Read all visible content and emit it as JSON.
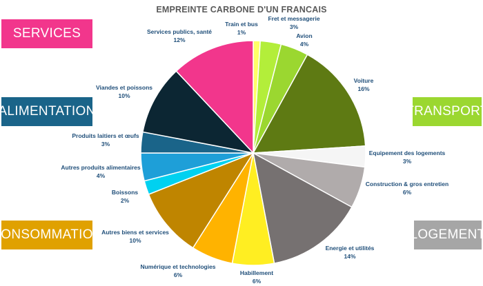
{
  "chart_data": {
    "type": "pie",
    "title": "EMPREINTE CARBONE D'UN FRANCAIS",
    "slices": [
      {
        "label": "Train et bus",
        "value_label": "1%",
        "value": 1,
        "color": "#FFFF66"
      },
      {
        "label": "Fret et messagerie",
        "value_label": "3%",
        "value": 3,
        "color": "#B3EE3A"
      },
      {
        "label": "Avion",
        "value_label": "4%",
        "value": 4,
        "color": "#9BD730"
      },
      {
        "label": "Voiture",
        "value_label": "16%",
        "value": 16,
        "color": "#5E7A13"
      },
      {
        "label": "Equipement des logements",
        "value_label": "3%",
        "value": 3,
        "color": "#F5F5F5"
      },
      {
        "label": "Construction & gros entretien",
        "value_label": "6%",
        "value": 6,
        "color": "#B0ABAB"
      },
      {
        "label": "Energie et utilités",
        "value_label": "14%",
        "value": 14,
        "color": "#767171"
      },
      {
        "label": "Habillement",
        "value_label": "6%",
        "value": 6,
        "color": "#FFEE22"
      },
      {
        "label": "Numérique et technologies",
        "value_label": "6%",
        "value": 6,
        "color": "#FFB300"
      },
      {
        "label": "Autres biens et services",
        "value_label": "10%",
        "value": 10,
        "color": "#BF8500"
      },
      {
        "label": "Boissons",
        "value_label": "2%",
        "value": 2,
        "color": "#00D1F0"
      },
      {
        "label": "Autres produits alimentaires",
        "value_label": "4%",
        "value": 4,
        "color": "#1E9FD8"
      },
      {
        "label": "Produits laitiers et œufs",
        "value_label": "3%",
        "value": 3,
        "color": "#1A6489"
      },
      {
        "label": "Viandes et poissons",
        "value_label": "10%",
        "value": 10,
        "color": "#0C2633"
      },
      {
        "label": "Services publics, santé",
        "value_label": "12%",
        "value": 12,
        "color": "#F2368C"
      }
    ],
    "categories": [
      {
        "label": "SERVICES",
        "color": "#F2368C"
      },
      {
        "label": "ALIMENTATION",
        "color": "#1A6489"
      },
      {
        "label": "TRANSPORT",
        "color": "#9BD730"
      },
      {
        "label": "CONSOMMATION",
        "color": "#E0A100"
      },
      {
        "label": "LOGEMENT",
        "color": "#A6A6A6"
      }
    ],
    "label_color": "#1F4E79"
  }
}
